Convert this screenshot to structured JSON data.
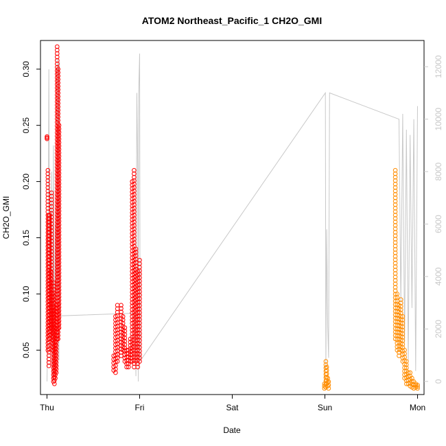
{
  "chart_data": {
    "type": "scatter",
    "title": "ATOM2 Northeast_Pacific_1 CH2O_GMI",
    "xlabel": "Date",
    "ylabel": "CH2O_GMI",
    "x_ticks": [
      "Thu",
      "Fri",
      "Sat",
      "Sun",
      "Mon"
    ],
    "x_tick_values": [
      0,
      1,
      2,
      3,
      4
    ],
    "xlim": [
      -0.07,
      4.07
    ],
    "ylim": [
      0.0105,
      0.3255
    ],
    "y_ticks": [
      0.05,
      0.1,
      0.15,
      0.2,
      0.25,
      0.3
    ],
    "y_tick_labels": [
      "0.05",
      "0.10",
      "0.15",
      "0.20",
      "0.25",
      "0.30"
    ],
    "y2_ylim": [
      -500,
      13000
    ],
    "y2_ticks": [
      0,
      2000,
      4000,
      6000,
      8000,
      10000,
      12000
    ],
    "y2_tick_labels": [
      "0",
      "2000",
      "4000",
      "6000",
      "8000",
      "10000",
      "12000"
    ],
    "grid": false,
    "series": [
      {
        "color": "#ff0000",
        "marker": "open-circle",
        "ranges": [
          [
            0.0,
            0.238,
            0.24
          ],
          [
            0.01,
            0.05,
            0.21
          ],
          [
            0.02,
            0.036,
            0.17
          ],
          [
            0.03,
            0.06,
            0.17
          ],
          [
            0.04,
            0.064,
            0.12
          ],
          [
            0.05,
            0.07,
            0.19
          ],
          [
            0.06,
            0.05,
            0.1
          ],
          [
            0.07,
            0.022,
            0.11
          ],
          [
            0.08,
            0.02,
            0.085
          ],
          [
            0.09,
            0.025,
            0.07
          ],
          [
            0.1,
            0.03,
            0.09
          ],
          [
            0.11,
            0.06,
            0.32
          ],
          [
            0.12,
            0.06,
            0.3
          ],
          [
            0.13,
            0.07,
            0.25
          ],
          [
            0.72,
            0.032,
            0.045
          ],
          [
            0.74,
            0.03,
            0.08
          ],
          [
            0.76,
            0.04,
            0.09
          ],
          [
            0.8,
            0.045,
            0.09
          ],
          [
            0.82,
            0.05,
            0.08
          ],
          [
            0.84,
            0.04,
            0.07
          ],
          [
            0.86,
            0.035,
            0.05
          ],
          [
            0.88,
            0.035,
            0.05
          ],
          [
            0.9,
            0.04,
            0.06
          ],
          [
            0.92,
            0.04,
            0.2
          ],
          [
            0.94,
            0.035,
            0.21
          ],
          [
            0.96,
            0.04,
            0.14
          ],
          [
            0.98,
            0.035,
            0.12
          ],
          [
            1.0,
            0.04,
            0.13
          ]
        ]
      },
      {
        "color": "#ff8c00",
        "marker": "open-circle",
        "ranges": [
          [
            2.995,
            0.016,
            0.02
          ],
          [
            3.01,
            0.017,
            0.04
          ],
          [
            3.02,
            0.02,
            0.035
          ],
          [
            3.03,
            0.018,
            0.025
          ],
          [
            3.04,
            0.016,
            0.022
          ],
          [
            3.76,
            0.06,
            0.21
          ],
          [
            3.78,
            0.05,
            0.1
          ],
          [
            3.8,
            0.045,
            0.09
          ],
          [
            3.82,
            0.05,
            0.095
          ],
          [
            3.84,
            0.04,
            0.08
          ],
          [
            3.86,
            0.025,
            0.05
          ],
          [
            3.88,
            0.02,
            0.04
          ],
          [
            3.9,
            0.02,
            0.03
          ],
          [
            3.92,
            0.018,
            0.03
          ],
          [
            3.94,
            0.017,
            0.025
          ],
          [
            3.96,
            0.016,
            0.022
          ],
          [
            3.98,
            0.017,
            0.02
          ],
          [
            4.0,
            0.016,
            0.019
          ]
        ]
      }
    ],
    "altitude_series": {
      "color": "#c8c8c8",
      "axis": "right",
      "x": [
        0.0,
        0.01,
        0.02,
        0.03,
        0.04,
        0.05,
        0.06,
        0.07,
        0.08,
        0.09,
        0.1,
        0.11,
        0.115,
        0.12,
        0.13,
        0.135,
        0.14,
        0.95,
        0.96,
        0.97,
        0.98,
        0.985,
        0.99,
        1.0,
        1.005,
        1.01,
        3.005,
        3.01,
        3.02,
        3.03,
        3.04,
        3.05,
        3.8,
        3.82,
        3.84,
        3.86,
        3.88,
        3.9,
        3.92,
        3.94,
        3.96,
        3.98,
        4.0
      ],
      "y": [
        0,
        2100,
        11900,
        2000,
        3500,
        8000,
        0,
        9000,
        200,
        6000,
        3000,
        12300,
        500,
        12100,
        800,
        12200,
        2500,
        2600,
        200,
        11000,
        8000,
        0,
        11000,
        12500,
        1000,
        800,
        11000,
        500,
        5800,
        2100,
        900,
        11000,
        10000,
        3000,
        10200,
        1500,
        9600,
        800,
        9400,
        2800,
        10000,
        400,
        10500
      ]
    }
  }
}
